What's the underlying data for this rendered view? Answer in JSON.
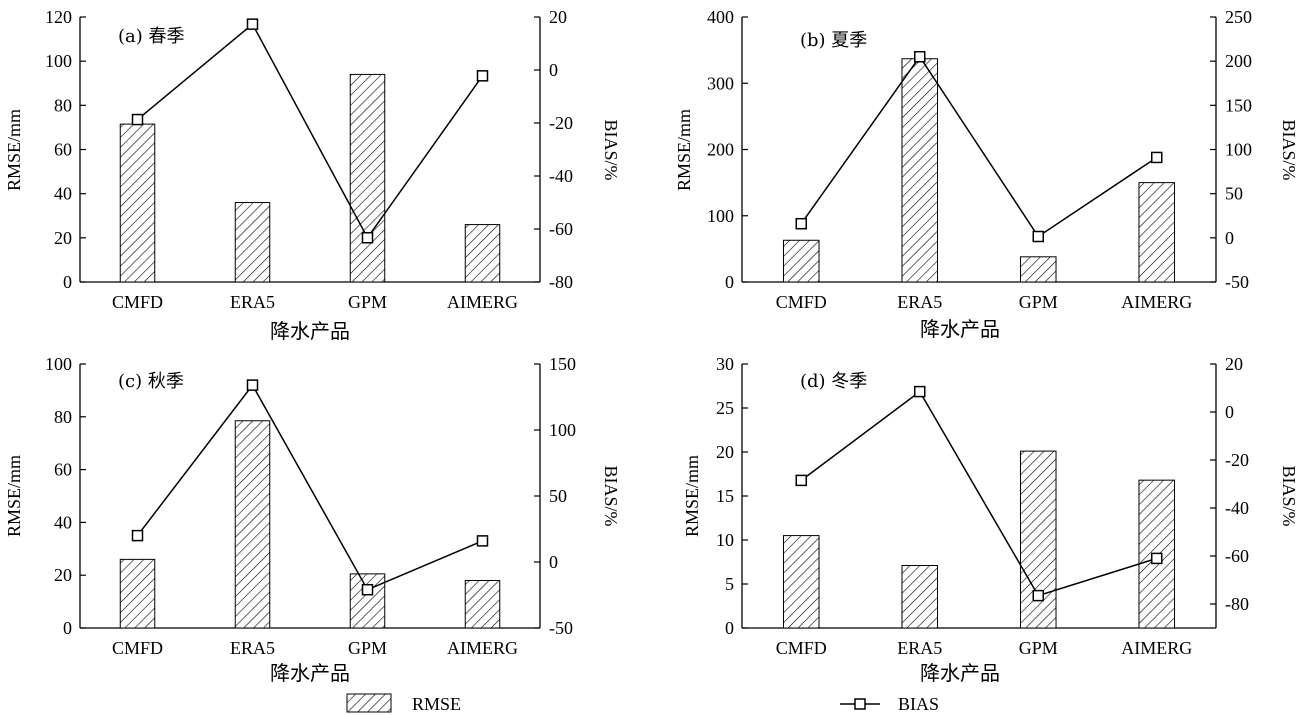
{
  "chart_data": [
    {
      "type": "bar",
      "title": "(a) 春季",
      "xlabel": "降水产品",
      "ylabel": "RMSE/mm",
      "y2label": "BIAS/%",
      "categories": [
        "CMFD",
        "ERA5",
        "GPM",
        "AIMERG"
      ],
      "ylim": [
        0,
        120
      ],
      "yticks": [
        0,
        20,
        40,
        60,
        80,
        100,
        120
      ],
      "y2lim": [
        -80,
        20
      ],
      "y2ticks": [
        -80,
        -60,
        -40,
        -20,
        0,
        20
      ],
      "series": [
        {
          "name": "RMSE",
          "type": "bar",
          "axis": "left",
          "values": [
            71.5,
            36,
            94,
            26
          ]
        },
        {
          "name": "BIAS",
          "type": "line",
          "axis": "right",
          "values": [
            -18.7,
            17.3,
            -63.3,
            -2.2
          ]
        }
      ]
    },
    {
      "type": "bar",
      "title": "(b) 夏季",
      "xlabel": "降水产品",
      "ylabel": "RMSE/mm",
      "y2label": "BIAS/%",
      "categories": [
        "CMFD",
        "ERA5",
        "GPM",
        "AIMERG"
      ],
      "ylim": [
        0,
        400
      ],
      "yticks": [
        0,
        100,
        200,
        300,
        400
      ],
      "y2lim": [
        -50,
        250
      ],
      "y2ticks": [
        -50,
        0,
        50,
        100,
        150,
        200,
        250
      ],
      "series": [
        {
          "name": "RMSE",
          "type": "bar",
          "axis": "left",
          "values": [
            63,
            337,
            38,
            150
          ]
        },
        {
          "name": "BIAS",
          "type": "line",
          "axis": "right",
          "values": [
            16,
            205,
            1.5,
            91
          ]
        }
      ]
    },
    {
      "type": "bar",
      "title": "(c) 秋季",
      "xlabel": "降水产品",
      "ylabel": "RMSE/mm",
      "y2label": "BIAS/%",
      "categories": [
        "CMFD",
        "ERA5",
        "GPM",
        "AIMERG"
      ],
      "ylim": [
        0,
        100
      ],
      "yticks": [
        0,
        20,
        40,
        60,
        80,
        100
      ],
      "y2lim": [
        -50,
        150
      ],
      "y2ticks": [
        -50,
        0,
        50,
        100,
        150
      ],
      "series": [
        {
          "name": "RMSE",
          "type": "bar",
          "axis": "left",
          "values": [
            26,
            78.5,
            20.5,
            18
          ]
        },
        {
          "name": "BIAS",
          "type": "line",
          "axis": "right",
          "values": [
            20,
            134,
            -21,
            16
          ]
        }
      ]
    },
    {
      "type": "bar",
      "title": "(d) 冬季",
      "xlabel": "降水产品",
      "ylabel": "RMSE/mm",
      "y2label": "BIAS/%",
      "categories": [
        "CMFD",
        "ERA5",
        "GPM",
        "AIMERG"
      ],
      "ylim": [
        0,
        30
      ],
      "yticks": [
        0,
        5,
        10,
        15,
        20,
        25,
        30
      ],
      "y2lim": [
        -90,
        20
      ],
      "y2ticks": [
        -80,
        -60,
        -40,
        -20,
        0,
        20
      ],
      "series": [
        {
          "name": "RMSE",
          "type": "bar",
          "axis": "left",
          "values": [
            10.5,
            7.1,
            20.1,
            16.8
          ]
        },
        {
          "name": "BIAS",
          "type": "line",
          "axis": "right",
          "values": [
            -28.5,
            8.5,
            -76.5,
            -61
          ]
        }
      ]
    }
  ],
  "legend": [
    {
      "name": "RMSE",
      "marker": "hatched-bar"
    },
    {
      "name": "BIAS",
      "marker": "line-square"
    }
  ]
}
